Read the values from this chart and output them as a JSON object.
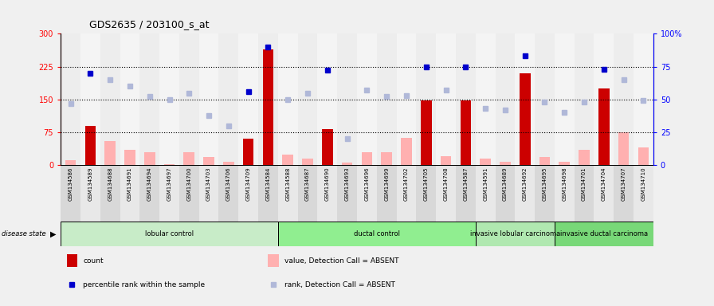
{
  "title": "GDS2635 / 203100_s_at",
  "samples": [
    "GSM134586",
    "GSM134589",
    "GSM134688",
    "GSM134691",
    "GSM134694",
    "GSM134697",
    "GSM134700",
    "GSM134703",
    "GSM134706",
    "GSM134709",
    "GSM134584",
    "GSM134588",
    "GSM134687",
    "GSM134690",
    "GSM134693",
    "GSM134696",
    "GSM134699",
    "GSM134702",
    "GSM134705",
    "GSM134708",
    "GSM134587",
    "GSM134591",
    "GSM134689",
    "GSM134692",
    "GSM134695",
    "GSM134698",
    "GSM134701",
    "GSM134704",
    "GSM134707",
    "GSM134710"
  ],
  "count_values": [
    null,
    90,
    null,
    null,
    null,
    null,
    null,
    null,
    null,
    60,
    265,
    null,
    null,
    83,
    null,
    null,
    null,
    null,
    147,
    null,
    147,
    null,
    null,
    210,
    null,
    null,
    null,
    175,
    null,
    null
  ],
  "absent_values": [
    12,
    null,
    55,
    35,
    30,
    3,
    30,
    18,
    8,
    null,
    null,
    25,
    15,
    null,
    6,
    30,
    30,
    62,
    null,
    20,
    null,
    15,
    8,
    null,
    18,
    8,
    35,
    null,
    75,
    40
  ],
  "rank_present": [
    null,
    70,
    null,
    null,
    null,
    null,
    null,
    null,
    null,
    56,
    90,
    null,
    null,
    72,
    null,
    null,
    null,
    null,
    75,
    null,
    75,
    null,
    null,
    83,
    null,
    null,
    null,
    73,
    null,
    null
  ],
  "rank_absent": [
    47,
    null,
    65,
    60,
    52,
    50,
    55,
    38,
    30,
    null,
    null,
    50,
    55,
    null,
    20,
    57,
    52,
    53,
    null,
    57,
    null,
    43,
    42,
    null,
    48,
    40,
    48,
    null,
    65,
    49
  ],
  "groups": [
    {
      "label": "lobular control",
      "start": 0,
      "end": 10,
      "color": "#c8ecc8"
    },
    {
      "label": "ductal control",
      "start": 11,
      "end": 20,
      "color": "#90ee90"
    },
    {
      "label": "invasive lobular carcinoma",
      "start": 21,
      "end": 24,
      "color": "#b0e8b0"
    },
    {
      "label": "invasive ductal carcinoma",
      "start": 25,
      "end": 29,
      "color": "#78d878"
    }
  ],
  "ylim_left": [
    0,
    300
  ],
  "ylim_right": [
    0,
    100
  ],
  "yticks_left": [
    0,
    75,
    150,
    225,
    300
  ],
  "yticks_right": [
    0,
    25,
    50,
    75,
    100
  ],
  "hlines": [
    75,
    150,
    225
  ],
  "count_color": "#cc0000",
  "absent_value_color": "#ffb0b0",
  "rank_present_color": "#0000cc",
  "rank_absent_color": "#b0b8d8",
  "col_bg_even": "#d8d8d8",
  "col_bg_odd": "#e8e8e8",
  "plot_bg_color": "#ffffff",
  "legend_items": [
    {
      "label": "count",
      "color": "#cc0000",
      "type": "bar"
    },
    {
      "label": "percentile rank within the sample",
      "color": "#0000cc",
      "type": "square"
    },
    {
      "label": "value, Detection Call = ABSENT",
      "color": "#ffb0b0",
      "type": "bar"
    },
    {
      "label": "rank, Detection Call = ABSENT",
      "color": "#b0b8d8",
      "type": "square"
    }
  ]
}
